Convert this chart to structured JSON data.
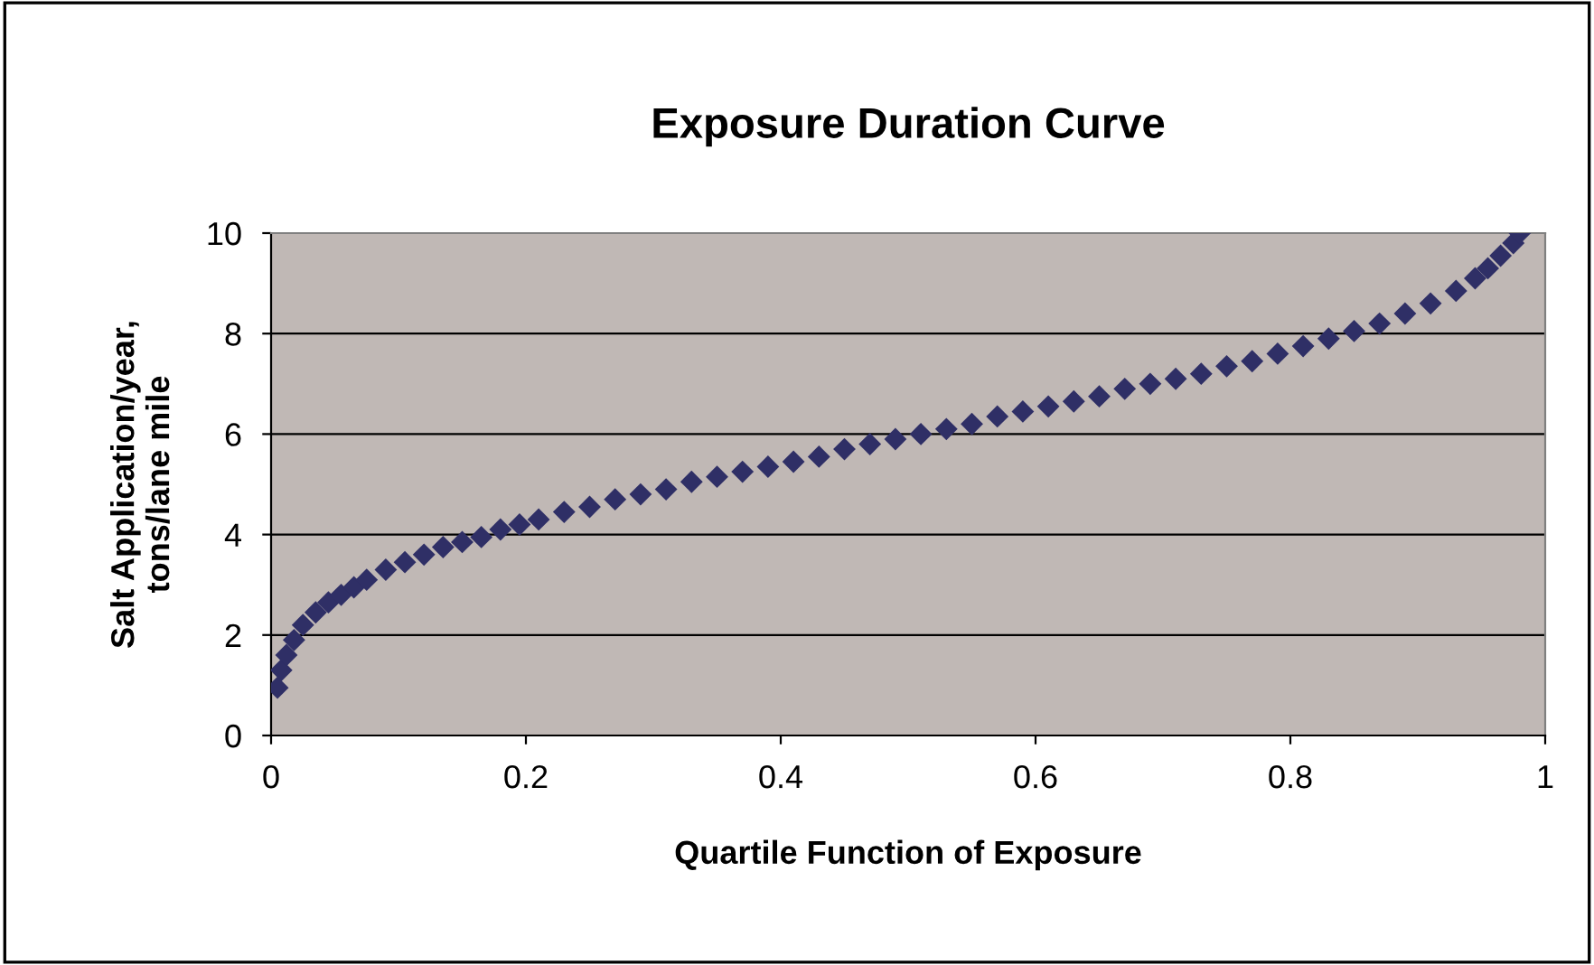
{
  "chart_data": {
    "type": "scatter",
    "title": "Exposure Duration Curve",
    "xlabel": "Quartile Function of Exposure",
    "ylabel": "Salt Application/year,\ntons/lane mile",
    "xlim": [
      0,
      1
    ],
    "xticks": [
      0,
      0.2,
      0.4,
      0.6,
      0.8,
      1
    ],
    "ylim": [
      0,
      10
    ],
    "yticks": [
      0,
      2,
      4,
      6,
      8,
      10
    ],
    "grid": "y",
    "marker": "diamond",
    "legend": false,
    "series": [
      {
        "color": "#2f2f66",
        "x": [
          0.005,
          0.008,
          0.012,
          0.018,
          0.025,
          0.035,
          0.045,
          0.055,
          0.065,
          0.075,
          0.09,
          0.105,
          0.12,
          0.135,
          0.15,
          0.165,
          0.18,
          0.195,
          0.21,
          0.23,
          0.25,
          0.27,
          0.29,
          0.31,
          0.33,
          0.35,
          0.37,
          0.39,
          0.41,
          0.43,
          0.45,
          0.47,
          0.49,
          0.51,
          0.53,
          0.55,
          0.57,
          0.59,
          0.61,
          0.63,
          0.65,
          0.67,
          0.69,
          0.71,
          0.73,
          0.75,
          0.77,
          0.79,
          0.81,
          0.83,
          0.85,
          0.87,
          0.89,
          0.91,
          0.93,
          0.945,
          0.955,
          0.965,
          0.975,
          0.98
        ],
        "values": [
          0.95,
          1.3,
          1.6,
          1.9,
          2.2,
          2.45,
          2.65,
          2.8,
          2.95,
          3.1,
          3.3,
          3.45,
          3.6,
          3.75,
          3.85,
          3.95,
          4.1,
          4.2,
          4.3,
          4.45,
          4.55,
          4.7,
          4.8,
          4.9,
          5.05,
          5.15,
          5.25,
          5.35,
          5.45,
          5.55,
          5.7,
          5.8,
          5.9,
          6.0,
          6.1,
          6.2,
          6.35,
          6.45,
          6.55,
          6.65,
          6.75,
          6.9,
          7.0,
          7.1,
          7.2,
          7.35,
          7.45,
          7.6,
          7.75,
          7.9,
          8.05,
          8.2,
          8.4,
          8.6,
          8.85,
          9.1,
          9.3,
          9.55,
          9.8,
          10.0
        ]
      }
    ]
  }
}
